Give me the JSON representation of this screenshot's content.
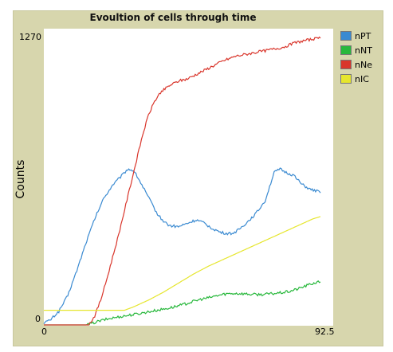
{
  "chart_data": {
    "type": "line",
    "title": "Evoultion of cells through time",
    "xlabel": "",
    "ylabel": "Counts",
    "xlim": [
      0,
      92.5
    ],
    "ylim": [
      0,
      1270
    ],
    "x_tick_labels": [
      "0",
      "92.5"
    ],
    "y_tick_labels": [
      "0",
      "1270"
    ],
    "legend_position": "right",
    "series": [
      {
        "name": "nPT",
        "color": "#3a8ad1",
        "points": [
          [
            0,
            10
          ],
          [
            2,
            20
          ],
          [
            5,
            60
          ],
          [
            8,
            130
          ],
          [
            11,
            240
          ],
          [
            14,
            360
          ],
          [
            17,
            470
          ],
          [
            20,
            560
          ],
          [
            23,
            620
          ],
          [
            26,
            660
          ],
          [
            28,
            690
          ],
          [
            30,
            685
          ],
          [
            32,
            640
          ],
          [
            34,
            590
          ],
          [
            36,
            540
          ],
          [
            38,
            490
          ],
          [
            40,
            460
          ],
          [
            42,
            440
          ],
          [
            45,
            435
          ],
          [
            48,
            450
          ],
          [
            51,
            465
          ],
          [
            53,
            455
          ],
          [
            56,
            430
          ],
          [
            59,
            410
          ],
          [
            61,
            405
          ],
          [
            63,
            405
          ],
          [
            65,
            420
          ],
          [
            68,
            455
          ],
          [
            71,
            495
          ],
          [
            74,
            550
          ],
          [
            77,
            675
          ],
          [
            79,
            690
          ],
          [
            81,
            675
          ],
          [
            84,
            660
          ],
          [
            86,
            625
          ],
          [
            89,
            600
          ],
          [
            92,
            590
          ],
          [
            92.5,
            585
          ]
        ]
      },
      {
        "name": "nNT",
        "color": "#28b83c",
        "points": [
          [
            0,
            0
          ],
          [
            14,
            0
          ],
          [
            16,
            6
          ],
          [
            18,
            15
          ],
          [
            20,
            22
          ],
          [
            22,
            28
          ],
          [
            24,
            33
          ],
          [
            26,
            38
          ],
          [
            28,
            42
          ],
          [
            31,
            48
          ],
          [
            34,
            56
          ],
          [
            37,
            63
          ],
          [
            40,
            70
          ],
          [
            43,
            78
          ],
          [
            46,
            88
          ],
          [
            49,
            100
          ],
          [
            52,
            112
          ],
          [
            55,
            120
          ],
          [
            58,
            130
          ],
          [
            61,
            138
          ],
          [
            64,
            140
          ],
          [
            67,
            138
          ],
          [
            70,
            135
          ],
          [
            73,
            135
          ],
          [
            76,
            138
          ],
          [
            79,
            142
          ],
          [
            82,
            148
          ],
          [
            85,
            160
          ],
          [
            88,
            175
          ],
          [
            91,
            188
          ],
          [
            92.5,
            190
          ]
        ]
      },
      {
        "name": "nNe",
        "color": "#d9352b",
        "points": [
          [
            0,
            0
          ],
          [
            15,
            0
          ],
          [
            17,
            40
          ],
          [
            19,
            110
          ],
          [
            21,
            200
          ],
          [
            23,
            300
          ],
          [
            25,
            400
          ],
          [
            27,
            510
          ],
          [
            29,
            620
          ],
          [
            31,
            730
          ],
          [
            33,
            840
          ],
          [
            35,
            930
          ],
          [
            37,
            990
          ],
          [
            39,
            1030
          ],
          [
            42,
            1060
          ],
          [
            45,
            1080
          ],
          [
            48,
            1090
          ],
          [
            51,
            1110
          ],
          [
            54,
            1130
          ],
          [
            57,
            1150
          ],
          [
            60,
            1170
          ],
          [
            64,
            1190
          ],
          [
            68,
            1200
          ],
          [
            72,
            1210
          ],
          [
            76,
            1220
          ],
          [
            80,
            1230
          ],
          [
            84,
            1250
          ],
          [
            88,
            1262
          ],
          [
            91,
            1268
          ],
          [
            92.5,
            1270
          ]
        ]
      },
      {
        "name": "nIC",
        "color": "#e6e62e",
        "points": [
          [
            0,
            65
          ],
          [
            27,
            65
          ],
          [
            30,
            80
          ],
          [
            35,
            110
          ],
          [
            40,
            145
          ],
          [
            45,
            185
          ],
          [
            50,
            225
          ],
          [
            55,
            260
          ],
          [
            60,
            290
          ],
          [
            65,
            320
          ],
          [
            70,
            350
          ],
          [
            75,
            380
          ],
          [
            80,
            410
          ],
          [
            85,
            440
          ],
          [
            90,
            470
          ],
          [
            92.5,
            480
          ]
        ]
      }
    ]
  }
}
